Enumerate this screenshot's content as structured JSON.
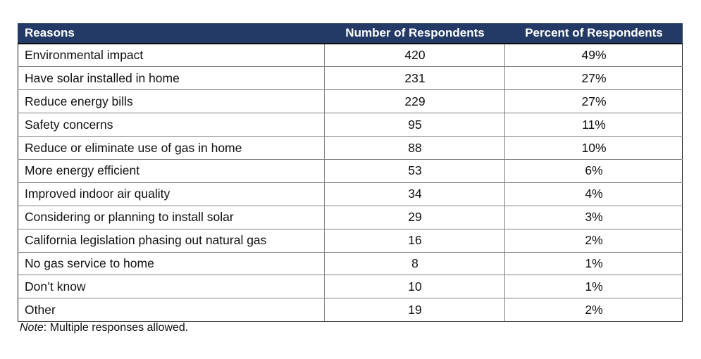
{
  "colors": {
    "header_bg": "#233A67",
    "header_text": "#FFFFFF",
    "grid_border": "#808080",
    "outer_border": "#1A1A1A"
  },
  "table": {
    "columns": [
      "Reasons",
      "Number of Respondents",
      "Percent of Respondents"
    ],
    "rows": [
      {
        "reason": "Environmental impact",
        "count": "420",
        "percent": "49%"
      },
      {
        "reason": "Have solar installed in home",
        "count": "231",
        "percent": "27%"
      },
      {
        "reason": "Reduce energy bills",
        "count": "229",
        "percent": "27%"
      },
      {
        "reason": "Safety concerns",
        "count": "95",
        "percent": "11%"
      },
      {
        "reason": "Reduce or eliminate use of gas in home",
        "count": "88",
        "percent": "10%"
      },
      {
        "reason": "More energy efficient",
        "count": "53",
        "percent": "6%"
      },
      {
        "reason": "Improved indoor air quality",
        "count": "34",
        "percent": "4%"
      },
      {
        "reason": "Considering or planning to install solar",
        "count": "29",
        "percent": "3%"
      },
      {
        "reason": "California legislation phasing out natural gas",
        "count": "16",
        "percent": "2%"
      },
      {
        "reason": "No gas service to home",
        "count": "8",
        "percent": "1%"
      },
      {
        "reason": "Don’t know",
        "count": "10",
        "percent": "1%"
      },
      {
        "reason": "Other",
        "count": "19",
        "percent": "2%"
      }
    ]
  },
  "note": {
    "label": "Note",
    "rest": ": Multiple responses allowed."
  },
  "chart_data": {
    "type": "table",
    "title": "",
    "columns": [
      "Reasons",
      "Number of Respondents",
      "Percent of Respondents"
    ],
    "rows": [
      [
        "Environmental impact",
        420,
        "49%"
      ],
      [
        "Have solar installed in home",
        231,
        "27%"
      ],
      [
        "Reduce energy bills",
        229,
        "27%"
      ],
      [
        "Safety concerns",
        95,
        "11%"
      ],
      [
        "Reduce or eliminate use of gas in home",
        88,
        "10%"
      ],
      [
        "More energy efficient",
        53,
        "6%"
      ],
      [
        "Improved indoor air quality",
        34,
        "4%"
      ],
      [
        "Considering or planning to install solar",
        29,
        "3%"
      ],
      [
        "California legislation phasing out natural gas",
        16,
        "2%"
      ],
      [
        "No gas service to home",
        8,
        "1%"
      ],
      [
        "Don’t know",
        10,
        "1%"
      ],
      [
        "Other",
        19,
        "2%"
      ]
    ],
    "note": "Note: Multiple responses allowed."
  }
}
